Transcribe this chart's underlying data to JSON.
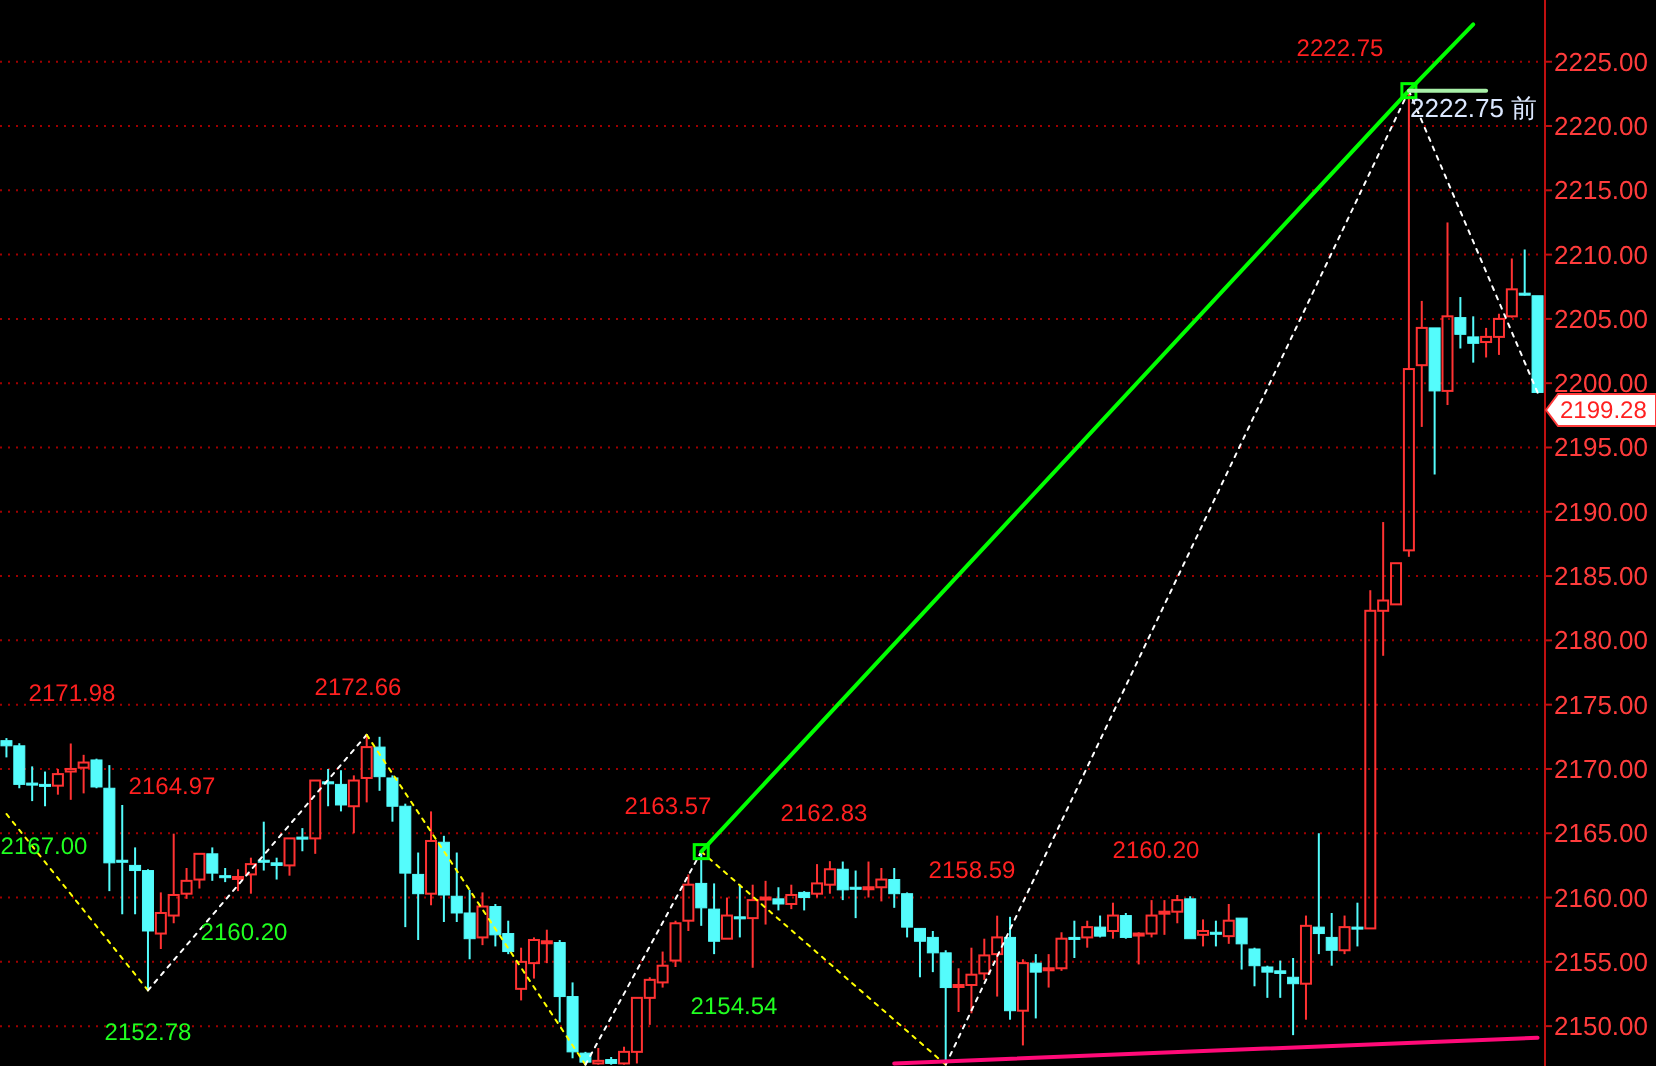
{
  "chart_data": {
    "type": "candlestick",
    "tick_labels": "y",
    "grid": "y",
    "ylim": [
      2146.9,
      2229.8
    ],
    "yticks": [
      {
        "value": 2150,
        "label": "2150.00"
      },
      {
        "value": 2155,
        "label": "2155.00"
      },
      {
        "value": 2160,
        "label": "2160.00"
      },
      {
        "value": 2165,
        "label": "2165.00"
      },
      {
        "value": 2170,
        "label": "2170.00"
      },
      {
        "value": 2175,
        "label": "2175.00"
      },
      {
        "value": 2180,
        "label": "2180.00"
      },
      {
        "value": 2185,
        "label": "2185.00"
      },
      {
        "value": 2190,
        "label": "2190.00"
      },
      {
        "value": 2195,
        "label": "2195.00"
      },
      {
        "value": 2200,
        "label": "2200.00"
      },
      {
        "value": 2205,
        "label": "2205.00"
      },
      {
        "value": 2210,
        "label": "2210.00"
      },
      {
        "value": 2215,
        "label": "2215.00"
      },
      {
        "value": 2220,
        "label": "2220.00"
      },
      {
        "value": 2225,
        "label": "2225.00"
      }
    ],
    "categories": [
      null,
      null,
      null,
      null,
      null,
      null,
      null,
      null,
      null,
      null,
      null,
      null,
      null,
      null,
      null,
      null,
      null,
      null,
      null,
      null,
      null,
      null,
      null,
      null,
      null,
      null,
      null,
      null,
      null,
      null,
      null,
      null,
      null,
      null,
      null,
      null,
      null,
      null,
      null,
      null,
      null,
      null,
      null,
      null,
      null,
      null,
      null,
      null,
      null,
      null,
      null,
      null,
      null,
      null,
      null,
      null,
      null,
      null,
      null,
      null,
      null,
      null,
      null,
      null,
      null,
      null,
      null,
      null,
      null,
      null,
      null,
      null,
      null,
      null,
      null,
      null,
      null,
      null,
      null,
      null,
      null,
      null,
      null,
      null,
      null,
      null,
      null,
      null,
      null,
      null,
      null,
      null,
      null,
      null,
      null,
      null,
      null,
      null,
      null,
      null,
      null,
      null,
      null,
      null,
      null,
      null,
      null,
      null,
      null,
      null,
      null,
      null,
      null,
      null,
      null,
      null,
      null,
      null,
      null,
      null
    ],
    "ohlc": [
      [
        2172.2,
        2172.4,
        2170.9,
        2171.8
      ],
      [
        2171.8,
        2172.0,
        2168.5,
        2168.8
      ],
      [
        2168.9,
        2170.2,
        2167.5,
        2168.8
      ],
      [
        2168.8,
        2169.8,
        2167.1,
        2168.7
      ],
      [
        2168.7,
        2170.0,
        2168.0,
        2169.6
      ],
      [
        2169.8,
        2171.98,
        2167.6,
        2170.0
      ],
      [
        2170.1,
        2171.1,
        2168.1,
        2170.5
      ],
      [
        2170.7,
        2170.8,
        2168.5,
        2168.6
      ],
      [
        2168.5,
        2170.3,
        2160.5,
        2162.7
      ],
      [
        2162.9,
        2167.2,
        2158.7,
        2162.8
      ],
      [
        2162.5,
        2163.9,
        2158.7,
        2162.1
      ],
      [
        2162.1,
        2162.2,
        2152.78,
        2157.4
      ],
      [
        2157.2,
        2160.4,
        2156.0,
        2158.8
      ],
      [
        2158.6,
        2164.97,
        2158.0,
        2160.2
      ],
      [
        2160.3,
        2162.3,
        2159.9,
        2161.3
      ],
      [
        2161.4,
        2163.4,
        2160.7,
        2163.4
      ],
      [
        2163.4,
        2163.9,
        2161.3,
        2161.9
      ],
      [
        2161.7,
        2162.3,
        2161.2,
        2161.6
      ],
      [
        2161.5,
        2162.2,
        2160.5,
        2161.6
      ],
      [
        2161.8,
        2163.1,
        2160.3,
        2162.6
      ],
      [
        2162.9,
        2165.9,
        2162.1,
        2162.8
      ],
      [
        2162.7,
        2163.1,
        2161.4,
        2162.5
      ],
      [
        2162.5,
        2164.6,
        2161.7,
        2164.6
      ],
      [
        2164.7,
        2165.4,
        2163.6,
        2164.6
      ],
      [
        2164.6,
        2169.1,
        2163.4,
        2169.1
      ],
      [
        2169.0,
        2170.0,
        2167.1,
        2168.9
      ],
      [
        2168.8,
        2169.9,
        2166.7,
        2167.2
      ],
      [
        2167.1,
        2169.5,
        2165.0,
        2169.1
      ],
      [
        2169.3,
        2172.66,
        2167.4,
        2171.7
      ],
      [
        2171.7,
        2172.5,
        2168.3,
        2169.4
      ],
      [
        2169.3,
        2169.5,
        2165.9,
        2167.1
      ],
      [
        2167.1,
        2167.3,
        2157.7,
        2161.9
      ],
      [
        2161.8,
        2163.5,
        2156.7,
        2160.3
      ],
      [
        2160.3,
        2166.7,
        2159.4,
        2164.4
      ],
      [
        2164.3,
        2164.8,
        2158.1,
        2160.2
      ],
      [
        2160.1,
        2163.5,
        2158.1,
        2158.8
      ],
      [
        2158.8,
        2160.6,
        2155.2,
        2156.8
      ],
      [
        2156.9,
        2160.4,
        2156.3,
        2159.3
      ],
      [
        2159.3,
        2159.5,
        2156.2,
        2157.1
      ],
      [
        2157.2,
        2158.2,
        2155.6,
        2155.8
      ],
      [
        2152.9,
        2156.1,
        2152.0,
        2155.0
      ],
      [
        2154.9,
        2156.9,
        2153.7,
        2156.7
      ],
      [
        2156.5,
        2157.5,
        2154.9,
        2156.6
      ],
      [
        2156.5,
        2156.7,
        2150.3,
        2152.3
      ],
      [
        2152.3,
        2153.4,
        2147.5,
        2148.0
      ],
      [
        2147.9,
        2148.0,
        2147.0,
        2147.2
      ],
      [
        2147.1,
        2148.3,
        2147.0,
        2147.3
      ],
      [
        2147.4,
        2147.6,
        2147.0,
        2147.1
      ],
      [
        2147.1,
        2148.4,
        2147.0,
        2148.0
      ],
      [
        2148.0,
        2152.2,
        2147.1,
        2152.2
      ],
      [
        2152.2,
        2153.8,
        2150.1,
        2153.6
      ],
      [
        2153.4,
        2155.8,
        2153.0,
        2154.7
      ],
      [
        2155.1,
        2158.2,
        2154.6,
        2158.0
      ],
      [
        2158.2,
        2161.8,
        2157.4,
        2161.0
      ],
      [
        2161.1,
        2163.57,
        2157.8,
        2159.2
      ],
      [
        2159.1,
        2161.1,
        2155.6,
        2156.6
      ],
      [
        2156.8,
        2160.0,
        2156.8,
        2158.6
      ],
      [
        2158.5,
        2161.0,
        2156.9,
        2158.4
      ],
      [
        2158.4,
        2161.0,
        2154.54,
        2159.8
      ],
      [
        2159.9,
        2161.3,
        2157.9,
        2160.0
      ],
      [
        2159.9,
        2160.8,
        2159.0,
        2159.5
      ],
      [
        2159.5,
        2161.0,
        2159.1,
        2160.2
      ],
      [
        2160.4,
        2160.5,
        2159.0,
        2160.0
      ],
      [
        2160.3,
        2162.6,
        2160.0,
        2161.1
      ],
      [
        2161.0,
        2162.83,
        2160.3,
        2162.2
      ],
      [
        2162.2,
        2162.8,
        2159.8,
        2160.6
      ],
      [
        2160.8,
        2162.1,
        2158.4,
        2160.7
      ],
      [
        2160.7,
        2162.8,
        2160.0,
        2160.8
      ],
      [
        2160.8,
        2162.3,
        2159.7,
        2161.4
      ],
      [
        2161.4,
        2162.3,
        2159.2,
        2160.3
      ],
      [
        2160.3,
        2160.4,
        2156.9,
        2157.7
      ],
      [
        2157.6,
        2157.6,
        2153.8,
        2156.6
      ],
      [
        2156.9,
        2157.4,
        2154.2,
        2155.7
      ],
      [
        2155.7,
        2155.9,
        2147.0,
        2153.0
      ],
      [
        2153.1,
        2154.5,
        2151.1,
        2153.2
      ],
      [
        2153.2,
        2156.1,
        2151.0,
        2154.0
      ],
      [
        2154.1,
        2156.8,
        2153.6,
        2155.5
      ],
      [
        2155.6,
        2158.59,
        2152.3,
        2156.9
      ],
      [
        2156.9,
        2158.5,
        2150.5,
        2151.2
      ],
      [
        2151.2,
        2155.2,
        2148.5,
        2154.9
      ],
      [
        2154.9,
        2155.6,
        2150.6,
        2154.2
      ],
      [
        2154.4,
        2155.6,
        2153.0,
        2154.5
      ],
      [
        2154.5,
        2157.3,
        2154.3,
        2156.8
      ],
      [
        2156.9,
        2158.2,
        2155.3,
        2156.8
      ],
      [
        2156.9,
        2158.2,
        2156.1,
        2157.7
      ],
      [
        2157.7,
        2158.6,
        2156.9,
        2157.0
      ],
      [
        2157.4,
        2159.6,
        2156.8,
        2158.6
      ],
      [
        2158.6,
        2158.8,
        2156.8,
        2156.9
      ],
      [
        2157.1,
        2157.3,
        2154.8,
        2157.2
      ],
      [
        2157.2,
        2159.8,
        2156.9,
        2158.6
      ],
      [
        2158.8,
        2159.8,
        2157.1,
        2158.9
      ],
      [
        2158.9,
        2160.2,
        2158.0,
        2159.8
      ],
      [
        2159.9,
        2160.1,
        2156.8,
        2156.8
      ],
      [
        2157.1,
        2158.3,
        2156.2,
        2157.4
      ],
      [
        2157.3,
        2158.2,
        2156.2,
        2157.2
      ],
      [
        2157.0,
        2159.5,
        2156.4,
        2158.2
      ],
      [
        2158.4,
        2158.4,
        2154.4,
        2156.4
      ],
      [
        2156.0,
        2156.1,
        2153.1,
        2154.7
      ],
      [
        2154.6,
        2154.7,
        2152.2,
        2154.2
      ],
      [
        2154.3,
        2155.1,
        2152.2,
        2154.1
      ],
      [
        2153.8,
        2155.3,
        2149.3,
        2153.3
      ],
      [
        2153.3,
        2158.6,
        2150.5,
        2157.8
      ],
      [
        2157.7,
        2165.0,
        2155.6,
        2157.2
      ],
      [
        2156.9,
        2158.8,
        2154.7,
        2155.9
      ],
      [
        2155.9,
        2158.6,
        2155.6,
        2157.7
      ],
      [
        2157.7,
        2159.6,
        2156.2,
        2157.6
      ],
      [
        2157.6,
        2183.9,
        2157.6,
        2182.3
      ],
      [
        2182.3,
        2189.2,
        2178.8,
        2183.1
      ],
      [
        2182.8,
        2186.0,
        2182.8,
        2186.0
      ],
      [
        2187.0,
        2222.75,
        2186.5,
        2201.1
      ],
      [
        2201.4,
        2206.4,
        2196.6,
        2204.3
      ],
      [
        2204.3,
        2204.3,
        2192.9,
        2199.4
      ],
      [
        2199.4,
        2212.5,
        2198.3,
        2205.2
      ],
      [
        2205.1,
        2206.7,
        2202.7,
        2203.8
      ],
      [
        2203.6,
        2205.2,
        2201.6,
        2203.1
      ],
      [
        2203.2,
        2204.3,
        2202.0,
        2203.6
      ],
      [
        2203.6,
        2205.4,
        2202.2,
        2205.0
      ],
      [
        2205.2,
        2209.7,
        2205.1,
        2207.3
      ],
      [
        2207.0,
        2210.4,
        2206.8,
        2206.9
      ],
      [
        2206.8,
        2206.8,
        2199.2,
        2199.28
      ]
    ],
    "colors": [
      "#54fcfc",
      "#54fcfc",
      "#54fcfc",
      "#54fcfc",
      "#ff3232",
      "#ff3232",
      "#ff3232",
      "#54fcfc",
      "#54fcfc",
      "#54fcfc",
      "#54fcfc",
      "#54fcfc",
      "#ff3232",
      "#ff3232",
      "#ff3232",
      "#ff3232",
      "#54fcfc",
      "#54fcfc",
      "#ff3232",
      "#ff3232",
      "#54fcfc",
      "#54fcfc",
      "#ff3232",
      "#54fcfc",
      "#ff3232",
      "#54fcfc",
      "#54fcfc",
      "#ff3232",
      "#ff3232",
      "#54fcfc",
      "#54fcfc",
      "#54fcfc",
      "#54fcfc",
      "#ff3232",
      "#54fcfc",
      "#54fcfc",
      "#54fcfc",
      "#ff3232",
      "#54fcfc",
      "#54fcfc",
      "#ff3232",
      "#ff3232",
      "#ff3232",
      "#54fcfc",
      "#54fcfc",
      "#54fcfc",
      "#ff3232",
      "#54fcfc",
      "#ff3232",
      "#ff3232",
      "#ff3232",
      "#ff3232",
      "#ff3232",
      "#ff3232",
      "#54fcfc",
      "#54fcfc",
      "#ff3232",
      "#54fcfc",
      "#ff3232",
      "#ff3232",
      "#54fcfc",
      "#ff3232",
      "#54fcfc",
      "#ff3232",
      "#ff3232",
      "#54fcfc",
      "#54fcfc",
      "#ff3232",
      "#ff3232",
      "#54fcfc",
      "#54fcfc",
      "#54fcfc",
      "#54fcfc",
      "#54fcfc",
      "#ff3232",
      "#ff3232",
      "#ff3232",
      "#ff3232",
      "#54fcfc",
      "#ff3232",
      "#54fcfc",
      "#ff3232",
      "#ff3232",
      "#54fcfc",
      "#ff3232",
      "#54fcfc",
      "#ff3232",
      "#54fcfc",
      "#ff3232",
      "#ff3232",
      "#ff3232",
      "#ff3232",
      "#54fcfc",
      "#ff3232",
      "#54fcfc",
      "#ff3232",
      "#54fcfc",
      "#54fcfc",
      "#54fcfc",
      "#54fcfc",
      "#54fcfc",
      "#ff3232",
      "#54fcfc",
      "#54fcfc",
      "#ff3232",
      "#54fcfc",
      "#ff3232",
      "#ff3232",
      "#ff3232",
      "#ff3232",
      "#ff3232",
      "#54fcfc",
      "#ff3232",
      "#54fcfc",
      "#54fcfc",
      "#ff3232",
      "#ff3232",
      "#ff3232",
      "#54fcfc",
      "#54fcfc"
    ],
    "series": [
      {
        "type": "line",
        "color": "#ffff00",
        "line_style": "dotted",
        "values": [
          2166.5,
          null,
          null,
          null,
          null,
          null,
          null,
          null,
          null,
          null,
          null,
          2152.78,
          null,
          null,
          null,
          null,
          null,
          null,
          null,
          null,
          null,
          null,
          null,
          null,
          null,
          null,
          null,
          null,
          null,
          null,
          null,
          null,
          null,
          null,
          null,
          null,
          null,
          null,
          null,
          null,
          null,
          null,
          null,
          null,
          null,
          null,
          null,
          null,
          null,
          null,
          null,
          null,
          null,
          null,
          null,
          null,
          null,
          null,
          null,
          null,
          null,
          null,
          null,
          null,
          null,
          null,
          null,
          null,
          null,
          null,
          null,
          null,
          null,
          null,
          null,
          null,
          null,
          null,
          null,
          null,
          null,
          null,
          null,
          null,
          null,
          null,
          null,
          null,
          null,
          null,
          null,
          null,
          null,
          null,
          null,
          null,
          null,
          null,
          null,
          null,
          null,
          null,
          null,
          null,
          null,
          null,
          null,
          null,
          null,
          null,
          null,
          null,
          null,
          null,
          null,
          null,
          null,
          null,
          null,
          null
        ]
      },
      {
        "type": "line",
        "color": "#ffffff",
        "line_style": "dotted",
        "values": [
          null,
          null,
          null,
          null,
          null,
          null,
          null,
          null,
          null,
          null,
          null,
          2152.78,
          null,
          null,
          null,
          null,
          null,
          null,
          null,
          null,
          null,
          null,
          null,
          null,
          null,
          null,
          null,
          null,
          2172.66,
          null,
          null,
          null,
          null,
          null,
          null,
          null,
          null,
          null,
          null,
          null,
          null,
          null,
          null,
          null,
          null,
          null,
          null,
          null,
          null,
          null,
          null,
          null,
          null,
          null,
          null,
          null,
          null,
          null,
          null,
          null,
          null,
          null,
          null,
          null,
          null,
          null,
          null,
          null,
          null,
          null,
          null,
          null,
          null,
          null,
          null,
          null,
          null,
          null,
          null,
          null,
          null,
          null,
          null,
          null,
          null,
          null,
          null,
          null,
          null,
          null,
          null,
          null,
          null,
          null,
          null,
          null,
          null,
          null,
          null,
          null,
          null,
          null,
          null,
          null,
          null,
          null,
          null,
          null,
          null,
          null,
          null,
          null,
          null,
          null,
          null,
          null,
          null,
          null,
          null,
          null
        ]
      },
      {
        "type": "line",
        "color": "#ffff00",
        "line_style": "dotted",
        "values": [
          null,
          null,
          null,
          null,
          null,
          null,
          null,
          null,
          null,
          null,
          null,
          null,
          null,
          null,
          null,
          null,
          null,
          null,
          null,
          null,
          null,
          null,
          null,
          null,
          null,
          null,
          null,
          null,
          2172.66,
          null,
          null,
          null,
          null,
          null,
          null,
          null,
          null,
          null,
          null,
          null,
          null,
          null,
          null,
          null,
          null,
          2147.0,
          null,
          null,
          null,
          null,
          null,
          null,
          null,
          null,
          null,
          null,
          null,
          null,
          null,
          null,
          null,
          null,
          null,
          null,
          null,
          null,
          null,
          null,
          null,
          null,
          null,
          null,
          null,
          null,
          null,
          null,
          null,
          null,
          null,
          null,
          null,
          null,
          null,
          null,
          null,
          null,
          null,
          null,
          null,
          null,
          null,
          null,
          null,
          null,
          null,
          null,
          null,
          null,
          null,
          null,
          null,
          null,
          null,
          null,
          null,
          null,
          null,
          null,
          null,
          null,
          null,
          null,
          null,
          null,
          null,
          null,
          null,
          null,
          null,
          null
        ]
      },
      {
        "type": "line",
        "color": "#ffffff",
        "line_style": "dotted",
        "values": [
          null,
          null,
          null,
          null,
          null,
          null,
          null,
          null,
          null,
          null,
          null,
          null,
          null,
          null,
          null,
          null,
          null,
          null,
          null,
          null,
          null,
          null,
          null,
          null,
          null,
          null,
          null,
          null,
          null,
          null,
          null,
          null,
          null,
          null,
          null,
          null,
          null,
          null,
          null,
          null,
          null,
          null,
          null,
          null,
          null,
          2147.0,
          null,
          null,
          null,
          null,
          null,
          null,
          null,
          null,
          2163.57,
          null,
          null,
          null,
          null,
          null,
          null,
          null,
          null,
          null,
          null,
          null,
          null,
          null,
          null,
          null,
          null,
          null,
          null,
          null,
          null,
          null,
          null,
          null,
          null,
          null,
          null,
          null,
          null,
          null,
          null,
          null,
          null,
          null,
          null,
          null,
          null,
          null,
          null,
          null,
          null,
          null,
          null,
          null,
          null,
          null,
          null,
          null,
          null,
          null,
          null,
          null,
          null,
          null,
          null,
          null,
          null,
          null,
          null,
          null,
          null,
          null,
          null,
          null,
          null,
          null
        ]
      },
      {
        "type": "line",
        "color": "#ffff00",
        "line_style": "dotted",
        "values": [
          null,
          null,
          null,
          null,
          null,
          null,
          null,
          null,
          null,
          null,
          null,
          null,
          null,
          null,
          null,
          null,
          null,
          null,
          null,
          null,
          null,
          null,
          null,
          null,
          null,
          null,
          null,
          null,
          null,
          null,
          null,
          null,
          null,
          null,
          null,
          null,
          null,
          null,
          null,
          null,
          null,
          null,
          null,
          null,
          null,
          null,
          null,
          null,
          null,
          null,
          null,
          null,
          null,
          null,
          2163.57,
          null,
          null,
          null,
          null,
          null,
          null,
          null,
          null,
          null,
          null,
          null,
          null,
          null,
          null,
          null,
          null,
          null,
          null,
          2147.0,
          null,
          null,
          null,
          null,
          null,
          null,
          null,
          null,
          null,
          null,
          null,
          null,
          null,
          null,
          null,
          null,
          null,
          null,
          null,
          null,
          null,
          null,
          null,
          null,
          null,
          null,
          null,
          null,
          null,
          null,
          null,
          null,
          null,
          null,
          null,
          null,
          null,
          null,
          null,
          null,
          null,
          null,
          null,
          null,
          null,
          null
        ]
      },
      {
        "type": "line",
        "color": "#ffffff",
        "line_style": "dotted",
        "values": [
          null,
          null,
          null,
          null,
          null,
          null,
          null,
          null,
          null,
          null,
          null,
          null,
          null,
          null,
          null,
          null,
          null,
          null,
          null,
          null,
          null,
          null,
          null,
          null,
          null,
          null,
          null,
          null,
          null,
          null,
          null,
          null,
          null,
          null,
          null,
          null,
          null,
          null,
          null,
          null,
          null,
          null,
          null,
          null,
          null,
          null,
          null,
          null,
          null,
          null,
          null,
          null,
          null,
          null,
          null,
          null,
          null,
          null,
          null,
          null,
          null,
          null,
          null,
          null,
          null,
          null,
          null,
          null,
          null,
          null,
          null,
          null,
          null,
          2147.0,
          null,
          null,
          null,
          null,
          null,
          null,
          null,
          null,
          null,
          null,
          null,
          null,
          null,
          null,
          null,
          null,
          null,
          null,
          null,
          null,
          null,
          null,
          null,
          null,
          null,
          null,
          null,
          null,
          null,
          null,
          null,
          null,
          null,
          null,
          null,
          2222.75,
          null,
          null,
          null,
          null,
          null,
          null,
          null,
          null,
          null,
          null
        ]
      },
      {
        "type": "line",
        "color": "#ffffff",
        "line_style": "dotted",
        "values": [
          null,
          null,
          null,
          null,
          null,
          null,
          null,
          null,
          null,
          null,
          null,
          null,
          null,
          null,
          null,
          null,
          null,
          null,
          null,
          null,
          null,
          null,
          null,
          null,
          null,
          null,
          null,
          null,
          null,
          null,
          null,
          null,
          null,
          null,
          null,
          null,
          null,
          null,
          null,
          null,
          null,
          null,
          null,
          null,
          null,
          null,
          null,
          null,
          null,
          null,
          null,
          null,
          null,
          null,
          null,
          null,
          null,
          null,
          null,
          null,
          null,
          null,
          null,
          null,
          null,
          null,
          null,
          null,
          null,
          null,
          null,
          null,
          null,
          null,
          null,
          null,
          null,
          null,
          null,
          null,
          null,
          null,
          null,
          null,
          null,
          null,
          null,
          null,
          null,
          null,
          null,
          null,
          null,
          null,
          null,
          null,
          null,
          null,
          null,
          null,
          null,
          null,
          null,
          null,
          null,
          null,
          null,
          null,
          null,
          2222.75,
          null,
          null,
          null,
          null,
          null,
          null,
          null,
          null,
          null,
          2199.28
        ]
      },
      {
        "type": "line",
        "color": "#00ff00",
        "line_style": "solid",
        "marker": "square",
        "values": [
          null,
          null,
          null,
          null,
          null,
          null,
          null,
          null,
          null,
          null,
          null,
          null,
          null,
          null,
          null,
          null,
          null,
          null,
          null,
          null,
          null,
          null,
          null,
          null,
          null,
          null,
          null,
          null,
          null,
          null,
          null,
          null,
          null,
          null,
          null,
          null,
          null,
          null,
          null,
          null,
          null,
          null,
          null,
          null,
          null,
          null,
          null,
          null,
          null,
          null,
          null,
          null,
          null,
          null,
          2163.57,
          null,
          null,
          null,
          null,
          null,
          null,
          null,
          null,
          null,
          null,
          null,
          null,
          null,
          null,
          null,
          null,
          null,
          null,
          null,
          null,
          null,
          null,
          null,
          null,
          null,
          null,
          null,
          null,
          null,
          null,
          null,
          null,
          null,
          null,
          null,
          null,
          null,
          null,
          null,
          null,
          null,
          null,
          null,
          null,
          null,
          null,
          null,
          null,
          null,
          null,
          null,
          null,
          null,
          null,
          2222.75,
          null,
          null,
          null,
          null,
          null,
          null,
          null,
          null,
          null,
          null
        ]
      },
      {
        "type": "line",
        "color": "#00ff00",
        "line_style": "solid",
        "values": [
          null,
          null,
          null,
          null,
          null,
          null,
          null,
          null,
          null,
          null,
          null,
          null,
          null,
          null,
          null,
          null,
          null,
          null,
          null,
          null,
          null,
          null,
          null,
          null,
          null,
          null,
          null,
          null,
          null,
          null,
          null,
          null,
          null,
          null,
          null,
          null,
          null,
          null,
          null,
          null,
          null,
          null,
          null,
          null,
          null,
          null,
          null,
          null,
          null,
          null,
          null,
          null,
          null,
          null,
          null,
          null,
          null,
          null,
          null,
          null,
          null,
          null,
          null,
          null,
          null,
          null,
          null,
          null,
          null,
          null,
          null,
          null,
          null,
          null,
          null,
          null,
          null,
          null,
          null,
          null,
          null,
          null,
          null,
          null,
          null,
          null,
          null,
          null,
          null,
          null,
          null,
          null,
          null,
          null,
          null,
          null,
          null,
          null,
          null,
          null,
          null,
          null,
          null,
          null,
          null,
          null,
          null,
          null,
          null,
          2222.75,
          null,
          null,
          null,
          null,
          2227.9,
          null,
          null,
          null,
          null,
          null
        ]
      },
      {
        "type": "line",
        "color": "#a8f0a8",
        "line_style": "solid",
        "values": [
          null,
          null,
          null,
          null,
          null,
          null,
          null,
          null,
          null,
          null,
          null,
          null,
          null,
          null,
          null,
          null,
          null,
          null,
          null,
          null,
          null,
          null,
          null,
          null,
          null,
          null,
          null,
          null,
          null,
          null,
          null,
          null,
          null,
          null,
          null,
          null,
          null,
          null,
          null,
          null,
          null,
          null,
          null,
          null,
          null,
          null,
          null,
          null,
          null,
          null,
          null,
          null,
          null,
          null,
          null,
          null,
          null,
          null,
          null,
          null,
          null,
          null,
          null,
          null,
          null,
          null,
          null,
          null,
          null,
          null,
          null,
          null,
          null,
          null,
          null,
          null,
          null,
          null,
          null,
          null,
          null,
          null,
          null,
          null,
          null,
          null,
          null,
          null,
          null,
          null,
          null,
          null,
          null,
          null,
          null,
          null,
          null,
          null,
          null,
          null,
          null,
          null,
          null,
          null,
          null,
          null,
          null,
          null,
          null,
          2222.75,
          null,
          null,
          null,
          null,
          null,
          2222.75,
          null,
          null,
          null,
          null
        ]
      },
      {
        "type": "line",
        "color": "#ff0a78",
        "line_style": "solid",
        "values": [
          null,
          null,
          null,
          null,
          null,
          null,
          null,
          null,
          null,
          null,
          null,
          null,
          null,
          null,
          null,
          null,
          null,
          null,
          null,
          null,
          null,
          null,
          null,
          null,
          null,
          null,
          null,
          null,
          null,
          null,
          null,
          null,
          null,
          null,
          null,
          null,
          null,
          null,
          null,
          null,
          null,
          null,
          null,
          null,
          null,
          null,
          null,
          null,
          null,
          null,
          null,
          null,
          null,
          null,
          null,
          null,
          null,
          null,
          null,
          null,
          null,
          null,
          null,
          null,
          null,
          null,
          null,
          null,
          null,
          2147.1,
          null,
          null,
          null,
          null,
          null,
          null,
          null,
          null,
          null,
          null,
          null,
          null,
          null,
          null,
          null,
          null,
          null,
          null,
          null,
          null,
          null,
          null,
          null,
          null,
          null,
          null,
          null,
          null,
          null,
          null,
          null,
          null,
          null,
          null,
          null,
          null,
          null,
          null,
          null,
          null,
          null,
          null,
          null,
          null,
          null,
          null,
          null,
          null,
          null,
          2149.1
        ]
      }
    ],
    "annotations": [
      {
        "text": "2171.98",
        "y": 2171.98
      },
      {
        "text": "2164.97",
        "y": 2164.97
      },
      {
        "text": "2167.00",
        "y": 2167.0
      },
      "2160.20",
      {
        "text": "2152.78",
        "y": 2152.78
      },
      {
        "text": "2172.66",
        "y": 2172.66
      },
      "2163.57",
      {
        "text": "2162.83",
        "y": 2162.83
      },
      "2154.54",
      "2158.59",
      "2160.20",
      "2222.75",
      "2222.75 前",
      "2199.28"
    ]
  }
}
